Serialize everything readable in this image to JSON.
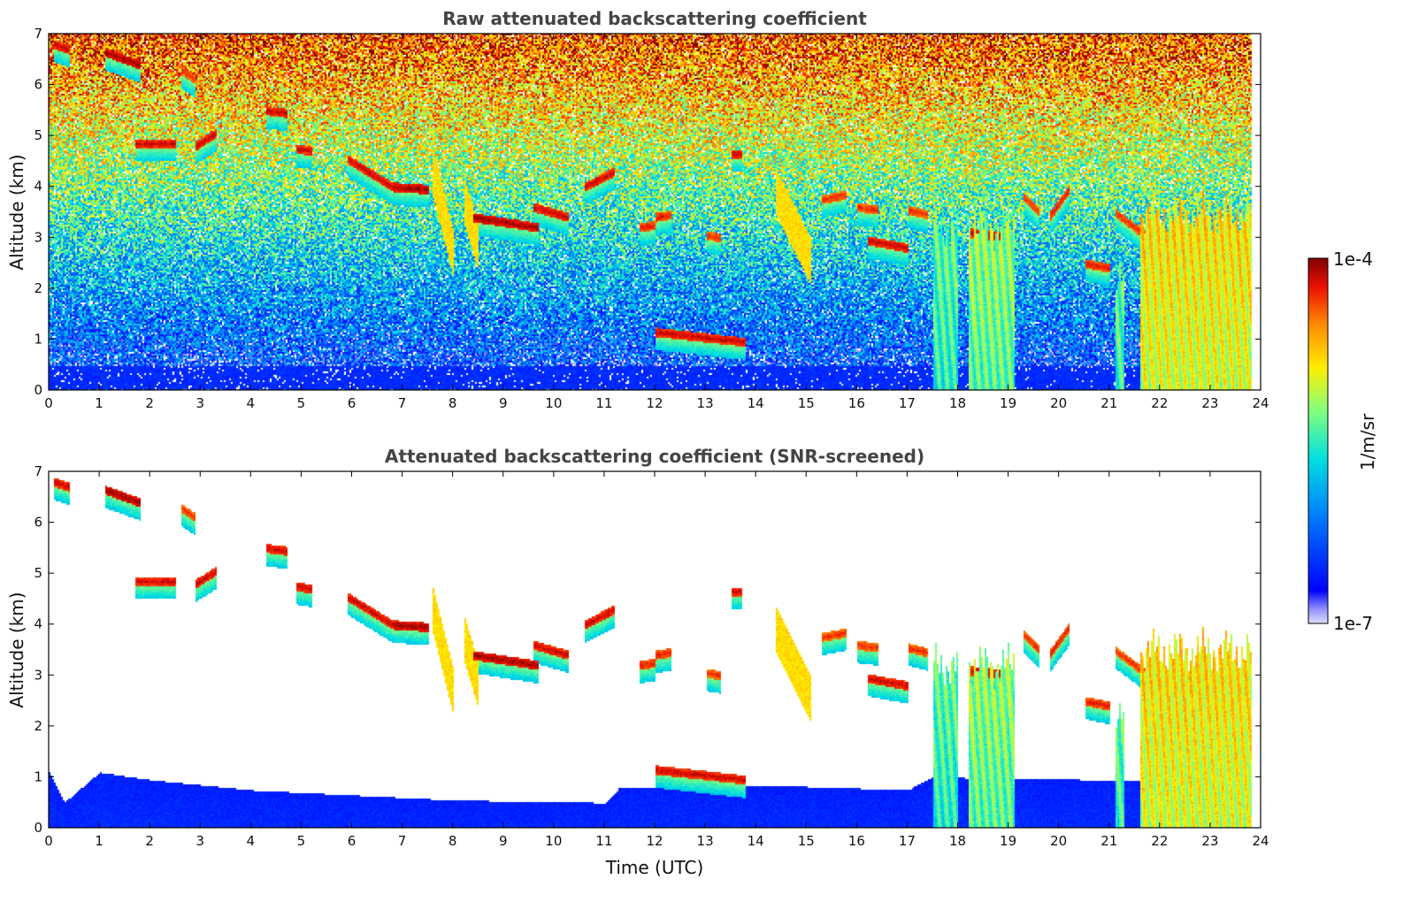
{
  "chart_data": [
    {
      "type": "heatmap",
      "title": "Raw attenuated backscattering coefficient",
      "xlabel": "",
      "ylabel": "Altitude (km)",
      "xlim": [
        0,
        24
      ],
      "ylim": [
        0,
        7
      ],
      "x_ticks": [
        "0",
        "1",
        "2",
        "3",
        "4",
        "5",
        "6",
        "7",
        "8",
        "9",
        "10",
        "11",
        "12",
        "13",
        "14",
        "15",
        "16",
        "17",
        "18",
        "19",
        "20",
        "21",
        "22",
        "23",
        "24"
      ],
      "y_ticks": [
        "0",
        "1",
        "2",
        "3",
        "4",
        "5",
        "6",
        "7"
      ],
      "screened": false,
      "cloud_layers": [
        {
          "t": [
            0.1,
            0.4
          ],
          "alt": [
            6.8,
            6.7
          ],
          "level": 0.95
        },
        {
          "t": [
            1.1,
            1.8
          ],
          "alt": [
            6.65,
            6.4
          ],
          "level": 0.98
        },
        {
          "t": [
            2.6,
            2.9
          ],
          "alt": [
            6.3,
            6.1
          ],
          "level": 0.9
        },
        {
          "t": [
            1.7,
            2.5
          ],
          "alt": [
            4.85,
            4.85
          ],
          "level": 0.95
        },
        {
          "t": [
            2.9,
            3.3
          ],
          "alt": [
            4.8,
            5.05
          ],
          "level": 0.95
        },
        {
          "t": [
            4.3,
            4.7
          ],
          "alt": [
            5.5,
            5.45
          ],
          "level": 0.95
        },
        {
          "t": [
            4.9,
            5.2
          ],
          "alt": [
            4.75,
            4.7
          ],
          "level": 0.95
        },
        {
          "t": [
            5.9,
            6.8
          ],
          "alt": [
            4.55,
            4.0
          ],
          "level": 0.95
        },
        {
          "t": [
            6.8,
            7.5
          ],
          "alt": [
            4.0,
            3.95
          ],
          "level": 0.98
        },
        {
          "t": [
            8.4,
            9.7
          ],
          "alt": [
            3.4,
            3.2
          ],
          "level": 0.98
        },
        {
          "t": [
            9.6,
            10.3
          ],
          "alt": [
            3.6,
            3.4
          ],
          "level": 0.95
        },
        {
          "t": [
            10.6,
            11.2
          ],
          "alt": [
            4.0,
            4.3
          ],
          "level": 0.95
        },
        {
          "t": [
            11.7,
            12.0
          ],
          "alt": [
            3.2,
            3.25
          ],
          "level": 0.92
        },
        {
          "t": [
            12.0,
            12.3
          ],
          "alt": [
            3.4,
            3.45
          ],
          "level": 0.92
        },
        {
          "t": [
            13.0,
            13.3
          ],
          "alt": [
            3.05,
            3.0
          ],
          "level": 0.9
        },
        {
          "t": [
            13.5,
            13.7
          ],
          "alt": [
            4.65,
            4.65
          ],
          "level": 0.95
        },
        {
          "t": [
            12.0,
            13.8
          ],
          "alt": [
            1.15,
            0.95
          ],
          "level": 0.95
        },
        {
          "t": [
            15.3,
            15.8
          ],
          "alt": [
            3.75,
            3.85
          ],
          "level": 0.9
        },
        {
          "t": [
            16.0,
            16.4
          ],
          "alt": [
            3.6,
            3.55
          ],
          "level": 0.9
        },
        {
          "t": [
            16.2,
            17.0
          ],
          "alt": [
            2.95,
            2.8
          ],
          "level": 0.95
        },
        {
          "t": [
            17.0,
            17.4
          ],
          "alt": [
            3.55,
            3.45
          ],
          "level": 0.9
        },
        {
          "t": [
            17.6,
            18.0
          ],
          "alt": [
            2.7,
            2.55
          ],
          "level": 0.95
        },
        {
          "t": [
            18.2,
            19.1
          ],
          "alt": [
            3.1,
            3.0
          ],
          "level": 0.95
        },
        {
          "t": [
            19.3,
            19.6
          ],
          "alt": [
            3.8,
            3.5
          ],
          "level": 0.9
        },
        {
          "t": [
            19.8,
            20.2
          ],
          "alt": [
            3.4,
            3.95
          ],
          "level": 0.92
        },
        {
          "t": [
            20.5,
            21.0
          ],
          "alt": [
            2.5,
            2.4
          ],
          "level": 0.92
        },
        {
          "t": [
            21.1,
            21.9
          ],
          "alt": [
            3.5,
            2.9
          ],
          "level": 0.9
        }
      ],
      "fall_streaks": [
        {
          "t": [
            7.6,
            8.0
          ],
          "alt": [
            4.3,
            2.7
          ]
        },
        {
          "t": [
            8.2,
            8.5
          ],
          "alt": [
            3.8,
            2.8
          ]
        },
        {
          "t": [
            14.4,
            15.1
          ],
          "alt": [
            3.9,
            2.5
          ]
        }
      ],
      "low_cloud_columns": [
        {
          "t": [
            17.5,
            18.0
          ],
          "top": 3.2,
          "level": 0.55
        },
        {
          "t": [
            18.2,
            19.1
          ],
          "top": 3.2,
          "level": 0.6
        },
        {
          "t": [
            21.1,
            21.3
          ],
          "top": 2.4,
          "level": 0.55
        },
        {
          "t": [
            21.6,
            23.8
          ],
          "top": 3.5,
          "level": 0.72
        }
      ]
    },
    {
      "type": "heatmap",
      "title": "Attenuated backscattering coefficient (SNR-screened)",
      "xlabel": "Time (UTC)",
      "ylabel": "Altitude (km)",
      "xlim": [
        0,
        24
      ],
      "ylim": [
        0,
        7
      ],
      "x_ticks": [
        "0",
        "1",
        "2",
        "3",
        "4",
        "5",
        "6",
        "7",
        "8",
        "9",
        "10",
        "11",
        "12",
        "13",
        "14",
        "15",
        "16",
        "17",
        "18",
        "19",
        "20",
        "21",
        "22",
        "23",
        "24"
      ],
      "y_ticks": [
        "0",
        "1",
        "2",
        "3",
        "4",
        "5",
        "6",
        "7"
      ],
      "screened": true,
      "boundary_layer_top": [
        {
          "t": 0,
          "alt": 1.1
        },
        {
          "t": 0.3,
          "alt": 0.5
        },
        {
          "t": 1,
          "alt": 1.1
        },
        {
          "t": 2,
          "alt": 0.95
        },
        {
          "t": 4,
          "alt": 0.75
        },
        {
          "t": 6,
          "alt": 0.65
        },
        {
          "t": 8,
          "alt": 0.55
        },
        {
          "t": 11,
          "alt": 0.5
        },
        {
          "t": 11.3,
          "alt": 0.8
        },
        {
          "t": 14,
          "alt": 0.85
        },
        {
          "t": 17,
          "alt": 0.75
        },
        {
          "t": 17.5,
          "alt": 1.0
        },
        {
          "t": 24,
          "alt": 0.9
        }
      ]
    }
  ],
  "colorbar": {
    "label": "1/m/sr",
    "max_label": "1e-4",
    "min_label": "1e-7",
    "scale": "log"
  }
}
